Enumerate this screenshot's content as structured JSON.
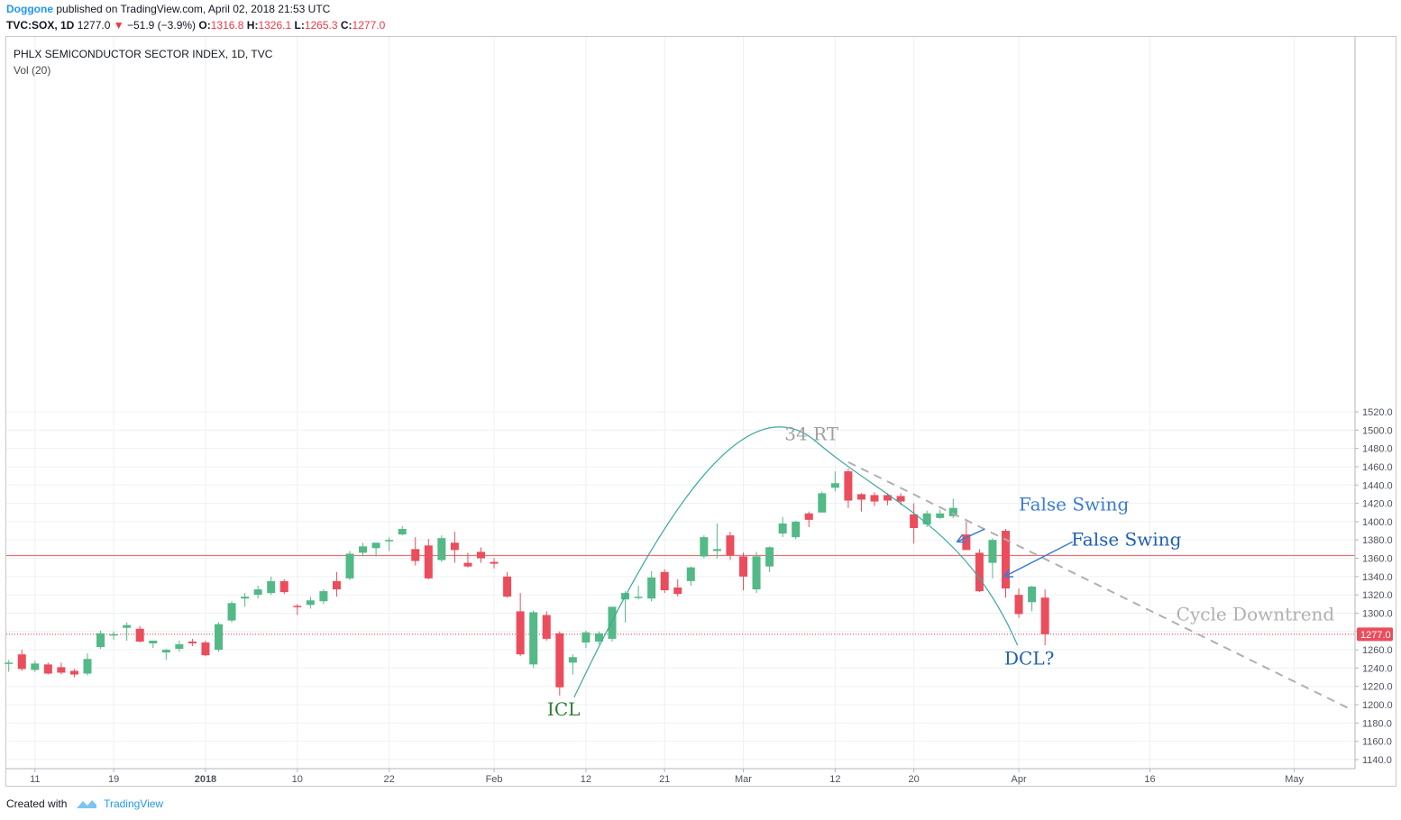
{
  "header": {
    "author": "Doggone",
    "published": "published on TradingView.com, April 02, 2018 21:53 UTC",
    "symbol": "TVC:SOX, 1D",
    "last": "1277.0",
    "change": "−51.9 (−3.9%)",
    "open_label": "O:",
    "open": "1316.8",
    "high_label": "H:",
    "high": "1326.1",
    "low_label": "L:",
    "low": "1265.3",
    "close_label": "C:",
    "close": "1277.0"
  },
  "legend": {
    "title": "PHLX SEMICONDUCTOR SECTOR INDEX, 1D, TVC",
    "volume": "Vol (20)"
  },
  "footer": {
    "created_with": "Created with",
    "brand": "TradingView"
  },
  "colors": {
    "up": "#53b987",
    "down": "#eb4d5c",
    "hline": "#e57373",
    "arc": "#3aa89e",
    "arrow": "#3a7bd5",
    "trend": "#b0b0b0"
  },
  "chart_data": {
    "type": "candlestick",
    "ylim": [
      1130,
      1530
    ],
    "y_ticks": [
      1140,
      1160,
      1180,
      1200,
      1220,
      1240,
      1260,
      1280,
      1300,
      1320,
      1340,
      1360,
      1380,
      1400,
      1420,
      1440,
      1460,
      1480,
      1500,
      1520
    ],
    "x_ticks": [
      {
        "label": "11",
        "i": 2
      },
      {
        "label": "19",
        "i": 8
      },
      {
        "label": "2018",
        "i": 15
      },
      {
        "label": "10",
        "i": 22
      },
      {
        "label": "22",
        "i": 29
      },
      {
        "label": "Feb",
        "i": 37
      },
      {
        "label": "12",
        "i": 44
      },
      {
        "label": "21",
        "i": 50
      },
      {
        "label": "Mar",
        "i": 56
      },
      {
        "label": "12",
        "i": 63
      },
      {
        "label": "20",
        "i": 69
      },
      {
        "label": "Apr",
        "i": 77
      },
      {
        "label": "16",
        "i": 87
      },
      {
        "label": "May",
        "i": 98
      }
    ],
    "last_price": 1277.0,
    "horizontal_level": 1363,
    "candles": [
      {
        "o": 1246,
        "h": 1249,
        "l": 1236,
        "c": 1246
      },
      {
        "o": 1255,
        "h": 1260,
        "l": 1237,
        "c": 1239
      },
      {
        "o": 1238,
        "h": 1248,
        "l": 1236,
        "c": 1245
      },
      {
        "o": 1244,
        "h": 1246,
        "l": 1233,
        "c": 1234
      },
      {
        "o": 1241,
        "h": 1246,
        "l": 1233,
        "c": 1235
      },
      {
        "o": 1237,
        "h": 1239,
        "l": 1230,
        "c": 1233
      },
      {
        "o": 1234,
        "h": 1256,
        "l": 1232,
        "c": 1250
      },
      {
        "o": 1263,
        "h": 1281,
        "l": 1261,
        "c": 1278
      },
      {
        "o": 1277,
        "h": 1280,
        "l": 1271,
        "c": 1277
      },
      {
        "o": 1284,
        "h": 1290,
        "l": 1270,
        "c": 1287
      },
      {
        "o": 1283,
        "h": 1286,
        "l": 1268,
        "c": 1269
      },
      {
        "o": 1267,
        "h": 1270,
        "l": 1262,
        "c": 1270
      },
      {
        "o": 1257,
        "h": 1261,
        "l": 1249,
        "c": 1260
      },
      {
        "o": 1261,
        "h": 1270,
        "l": 1258,
        "c": 1266
      },
      {
        "o": 1269,
        "h": 1272,
        "l": 1264,
        "c": 1267
      },
      {
        "o": 1268,
        "h": 1270,
        "l": 1253,
        "c": 1254
      },
      {
        "o": 1260,
        "h": 1290,
        "l": 1258,
        "c": 1288
      },
      {
        "o": 1292,
        "h": 1313,
        "l": 1290,
        "c": 1311
      },
      {
        "o": 1316,
        "h": 1322,
        "l": 1307,
        "c": 1318
      },
      {
        "o": 1320,
        "h": 1330,
        "l": 1316,
        "c": 1326
      },
      {
        "o": 1322,
        "h": 1340,
        "l": 1320,
        "c": 1335
      },
      {
        "o": 1335,
        "h": 1337,
        "l": 1321,
        "c": 1323
      },
      {
        "o": 1308,
        "h": 1310,
        "l": 1298,
        "c": 1307
      },
      {
        "o": 1309,
        "h": 1318,
        "l": 1305,
        "c": 1314
      },
      {
        "o": 1313,
        "h": 1326,
        "l": 1310,
        "c": 1324
      },
      {
        "o": 1335,
        "h": 1345,
        "l": 1318,
        "c": 1326
      },
      {
        "o": 1338,
        "h": 1368,
        "l": 1336,
        "c": 1365
      },
      {
        "o": 1366,
        "h": 1377,
        "l": 1362,
        "c": 1373
      },
      {
        "o": 1371,
        "h": 1377,
        "l": 1362,
        "c": 1377
      },
      {
        "o": 1380,
        "h": 1383,
        "l": 1368,
        "c": 1380
      },
      {
        "o": 1386,
        "h": 1395,
        "l": 1385,
        "c": 1392
      },
      {
        "o": 1370,
        "h": 1383,
        "l": 1352,
        "c": 1357
      },
      {
        "o": 1374,
        "h": 1381,
        "l": 1337,
        "c": 1338
      },
      {
        "o": 1358,
        "h": 1385,
        "l": 1356,
        "c": 1382
      },
      {
        "o": 1377,
        "h": 1389,
        "l": 1355,
        "c": 1369
      },
      {
        "o": 1355,
        "h": 1366,
        "l": 1350,
        "c": 1351
      },
      {
        "o": 1367,
        "h": 1372,
        "l": 1355,
        "c": 1360
      },
      {
        "o": 1356,
        "h": 1360,
        "l": 1349,
        "c": 1354
      },
      {
        "o": 1340,
        "h": 1345,
        "l": 1317,
        "c": 1318
      },
      {
        "o": 1302,
        "h": 1322,
        "l": 1253,
        "c": 1255
      },
      {
        "o": 1244,
        "h": 1303,
        "l": 1240,
        "c": 1301
      },
      {
        "o": 1298,
        "h": 1302,
        "l": 1270,
        "c": 1272
      },
      {
        "o": 1278,
        "h": 1280,
        "l": 1210,
        "c": 1219
      },
      {
        "o": 1246,
        "h": 1255,
        "l": 1233,
        "c": 1252
      },
      {
        "o": 1268,
        "h": 1281,
        "l": 1262,
        "c": 1279
      },
      {
        "o": 1269,
        "h": 1280,
        "l": 1266,
        "c": 1278
      },
      {
        "o": 1272,
        "h": 1306,
        "l": 1269,
        "c": 1307
      },
      {
        "o": 1315,
        "h": 1324,
        "l": 1290,
        "c": 1322
      },
      {
        "o": 1318,
        "h": 1330,
        "l": 1315,
        "c": 1318
      },
      {
        "o": 1316,
        "h": 1346,
        "l": 1313,
        "c": 1339
      },
      {
        "o": 1345,
        "h": 1348,
        "l": 1322,
        "c": 1325
      },
      {
        "o": 1328,
        "h": 1337,
        "l": 1318,
        "c": 1321
      },
      {
        "o": 1335,
        "h": 1351,
        "l": 1330,
        "c": 1350
      },
      {
        "o": 1362,
        "h": 1385,
        "l": 1360,
        "c": 1383
      },
      {
        "o": 1368,
        "h": 1398,
        "l": 1360,
        "c": 1370
      },
      {
        "o": 1385,
        "h": 1389,
        "l": 1358,
        "c": 1363
      },
      {
        "o": 1362,
        "h": 1366,
        "l": 1325,
        "c": 1340
      },
      {
        "o": 1326,
        "h": 1367,
        "l": 1322,
        "c": 1362
      },
      {
        "o": 1351,
        "h": 1373,
        "l": 1345,
        "c": 1372
      },
      {
        "o": 1387,
        "h": 1405,
        "l": 1383,
        "c": 1398
      },
      {
        "o": 1383,
        "h": 1401,
        "l": 1381,
        "c": 1400
      },
      {
        "o": 1409,
        "h": 1411,
        "l": 1394,
        "c": 1402
      },
      {
        "o": 1410,
        "h": 1433,
        "l": 1410,
        "c": 1431
      },
      {
        "o": 1437,
        "h": 1455,
        "l": 1433,
        "c": 1442
      },
      {
        "o": 1455,
        "h": 1458,
        "l": 1415,
        "c": 1423
      },
      {
        "o": 1430,
        "h": 1431,
        "l": 1411,
        "c": 1424
      },
      {
        "o": 1429,
        "h": 1432,
        "l": 1417,
        "c": 1422
      },
      {
        "o": 1429,
        "h": 1431,
        "l": 1418,
        "c": 1423
      },
      {
        "o": 1428,
        "h": 1431,
        "l": 1418,
        "c": 1422
      },
      {
        "o": 1408,
        "h": 1420,
        "l": 1376,
        "c": 1393
      },
      {
        "o": 1397,
        "h": 1412,
        "l": 1394,
        "c": 1409
      },
      {
        "o": 1404,
        "h": 1413,
        "l": 1403,
        "c": 1409
      },
      {
        "o": 1406,
        "h": 1425,
        "l": 1404,
        "c": 1415
      },
      {
        "o": 1386,
        "h": 1400,
        "l": 1369,
        "c": 1369
      },
      {
        "o": 1366,
        "h": 1370,
        "l": 1323,
        "c": 1324
      },
      {
        "o": 1355,
        "h": 1382,
        "l": 1338,
        "c": 1380
      },
      {
        "o": 1390,
        "h": 1392,
        "l": 1317,
        "c": 1327
      },
      {
        "o": 1320,
        "h": 1327,
        "l": 1295,
        "c": 1299
      },
      {
        "o": 1312,
        "h": 1330,
        "l": 1302,
        "c": 1329
      },
      {
        "o": 1317,
        "h": 1326,
        "l": 1265,
        "c": 1277
      }
    ],
    "annotations": [
      {
        "text": "34 RT",
        "type": "cycle-label"
      },
      {
        "text": "ICL",
        "type": "label"
      },
      {
        "text": "DCL?",
        "type": "label"
      },
      {
        "text": "False Swing",
        "type": "arrow-label"
      },
      {
        "text": "False Swing",
        "type": "arrow-label"
      },
      {
        "text": "Cycle Downtrend",
        "type": "trendline-label"
      }
    ]
  }
}
